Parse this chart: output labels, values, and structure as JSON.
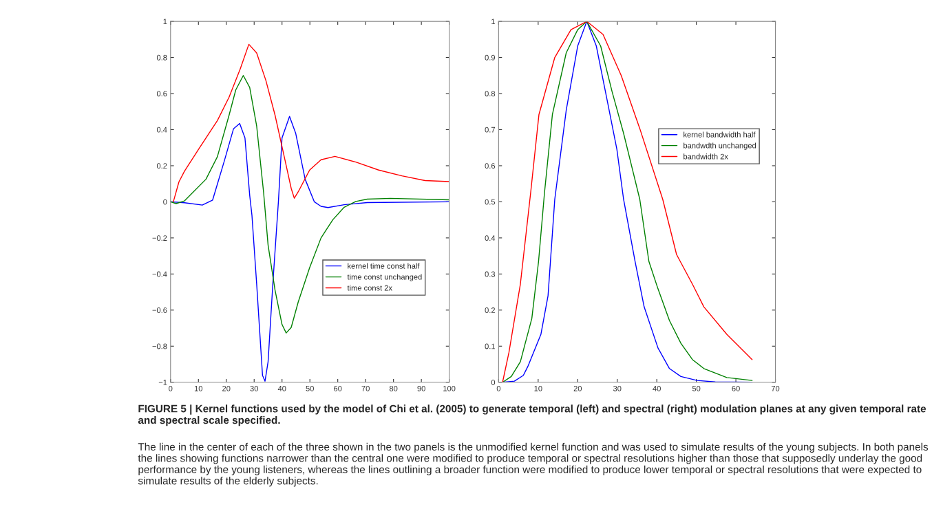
{
  "chart_data": [
    {
      "type": "line",
      "x": [
        1,
        3,
        5,
        10,
        12.7,
        16.8,
        21,
        25,
        28.1,
        30.9,
        34.2,
        37.5,
        40.8,
        43.3,
        44.4,
        45.8,
        49.9,
        54,
        59,
        66.5,
        74.7,
        83,
        91.3,
        100
      ],
      "series": [
        {
          "name": "kernel time const half",
          "color": "#0000ff",
          "x": [
            0,
            5,
            11.4,
            15.1,
            19.3,
            22.6,
            24.8,
            26.7,
            28.4,
            29.2,
            30.9,
            33,
            33.9,
            35,
            36.7,
            38.7,
            40,
            42.7,
            44.9,
            48.3,
            51.6,
            54,
            56.5,
            62.3,
            70.6,
            100
          ],
          "values": [
            0,
            -0.005,
            -0.018,
            0.01,
            0.227,
            0.405,
            0.434,
            0.354,
            0.036,
            -0.074,
            -0.455,
            -0.962,
            -0.994,
            -0.886,
            -0.455,
            0,
            0.354,
            0.473,
            0.38,
            0.125,
            0,
            -0.025,
            -0.032,
            -0.016,
            -0.004,
            0
          ]
        },
        {
          "name": "time const unchanged",
          "color": "#008000",
          "x": [
            0,
            2,
            5,
            12.7,
            16.8,
            21,
            23.4,
            26.1,
            28.4,
            30.9,
            33.4,
            35,
            37.5,
            40,
            41.5,
            43.3,
            45.8,
            49.9,
            54,
            58.2,
            62.3,
            66.5,
            70.6,
            78.9,
            100
          ],
          "values": [
            0,
            -0.01,
            0.005,
            0.125,
            0.25,
            0.48,
            0.62,
            0.7,
            0.634,
            0.42,
            0.05,
            -0.24,
            -0.49,
            -0.68,
            -0.727,
            -0.696,
            -0.556,
            -0.365,
            -0.2,
            -0.1,
            -0.03,
            0.002,
            0.015,
            0.019,
            0.011
          ]
        },
        {
          "name": "time const 2x",
          "color": "#ff0000",
          "values": [
            0,
            0.11,
            0.17,
            0.29,
            0.354,
            0.45,
            0.58,
            0.736,
            0.873,
            0.825,
            0.673,
            0.48,
            0.25,
            0.074,
            0.02,
            0.055,
            0.176,
            0.233,
            0.252,
            0.22,
            0.176,
            0.144,
            0.118,
            0.112
          ]
        }
      ],
      "xlim": [
        0,
        100
      ],
      "ylim": [
        -1,
        1
      ],
      "xticks": [
        0,
        10,
        20,
        30,
        40,
        50,
        60,
        70,
        80,
        90,
        100
      ],
      "yticks": [
        {
          "value": -1,
          "label": "−1"
        },
        {
          "value": -0.8,
          "label": "−0.8"
        },
        {
          "value": -0.6,
          "label": "−0.6"
        },
        {
          "value": -0.4,
          "label": "−0.4"
        },
        {
          "value": -0.2,
          "label": "−0.2"
        },
        0,
        0.2,
        0.4,
        0.6,
        0.8,
        1
      ],
      "legend": "center",
      "grid": false,
      "marker": "none",
      "line_style": "solid",
      "annotations": [
        "FIGURE 5 | Kernel functions used by the model of Chi et al. (2005) to generate temporal (left) and spectral (right) modulation planes at any given temporal rate and spectral scale specified.",
        "The line in the center of each of the three shown in the two panels is the unmodified kernel function and was used to simulate results of the young subjects. In both panels the lines showing functions narrower than the central one were modified to produce temporal or spectral resolutions higher than those that supposedly underlay the good performance by the young listeners, whereas the lines outlining a broader function were modified to produce lower temporal or spectral resolutions that were expected to simulate results of the elderly subjects."
      ]
    },
    {
      "type": "line",
      "series": [
        {
          "name": "kernel bandwidth half",
          "color": "#0000ff",
          "x": [
            1,
            4,
            6.25,
            7.4,
            10.7,
            12.5,
            14.2,
            17.1,
            20,
            22.3,
            24.7,
            27.6,
            29.9,
            31.6,
            34.5,
            36.8,
            40.3,
            43.2,
            46.1,
            50.2,
            54.8,
            64.1
          ],
          "values": [
            0,
            0.003,
            0.019,
            0.044,
            0.133,
            0.24,
            0.507,
            0.754,
            0.932,
            1,
            0.932,
            0.773,
            0.646,
            0.507,
            0.335,
            0.209,
            0.095,
            0.038,
            0.016,
            0.005,
            0.001,
            0
          ]
        },
        {
          "name": "bandwdth unchanged",
          "color": "#008000",
          "x": [
            1,
            3.2,
            5.5,
            8.4,
            10.1,
            11.6,
            13.6,
            17.1,
            20,
            22.3,
            25.8,
            28.7,
            31.6,
            35.7,
            38,
            40.3,
            43.2,
            46.1,
            49,
            51.9,
            57.7,
            64.1
          ],
          "values": [
            0,
            0.016,
            0.057,
            0.177,
            0.335,
            0.525,
            0.742,
            0.913,
            0.977,
            1,
            0.932,
            0.805,
            0.69,
            0.507,
            0.335,
            0.259,
            0.171,
            0.108,
            0.063,
            0.038,
            0.013,
            0.005
          ]
        },
        {
          "name": "bandwidth 2x",
          "color": "#ff0000",
          "x": [
            1,
            2.6,
            5.5,
            8.1,
            10.2,
            14.2,
            18.3,
            22.3,
            26.4,
            31,
            35.7,
            41.5,
            45,
            49,
            51.9,
            57.7,
            64.1
          ],
          "values": [
            0,
            0.082,
            0.272,
            0.525,
            0.742,
            0.9,
            0.977,
            1,
            0.964,
            0.85,
            0.703,
            0.507,
            0.354,
            0.272,
            0.209,
            0.133,
            0.063
          ]
        }
      ],
      "xlim": [
        0,
        70
      ],
      "ylim": [
        0,
        1
      ],
      "xticks": [
        0,
        10,
        20,
        30,
        40,
        50,
        60,
        70
      ],
      "yticks": [
        0,
        0.1,
        0.2,
        0.3,
        0.4,
        0.5,
        0.6,
        0.7,
        0.8,
        0.9,
        1
      ],
      "legend": "center",
      "grid": false,
      "marker": "none",
      "line_style": "solid"
    }
  ]
}
